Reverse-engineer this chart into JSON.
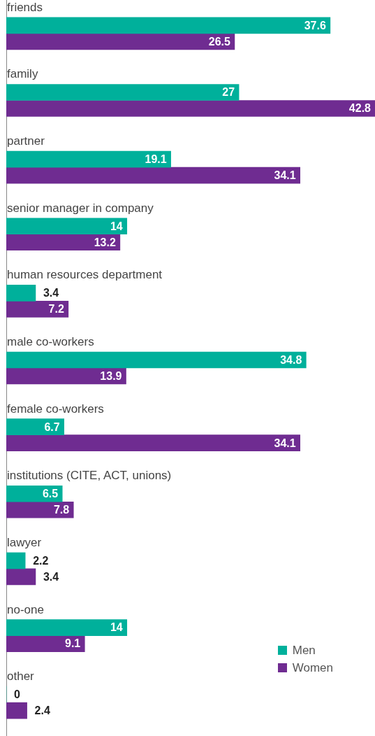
{
  "chart_data": {
    "type": "bar",
    "orientation": "horizontal",
    "categories": [
      "friends",
      "family",
      "partner",
      "senior manager in company",
      "human resources department",
      "male co-workers",
      "female co-workers",
      "institutions (CITE, ACT, unions)",
      "lawyer",
      "no-one",
      "other"
    ],
    "series": [
      {
        "name": "Men",
        "color": "#00b09b",
        "values": [
          37.6,
          27,
          19.1,
          14,
          3.4,
          34.8,
          6.7,
          6.5,
          2.2,
          14,
          0
        ]
      },
      {
        "name": "Women",
        "color": "#6f2c91",
        "values": [
          26.5,
          42.8,
          34.1,
          13.2,
          7.2,
          13.9,
          34.1,
          7.8,
          3.4,
          9.1,
          2.4
        ]
      }
    ],
    "data_labels": true,
    "legend": "bottom right"
  }
}
